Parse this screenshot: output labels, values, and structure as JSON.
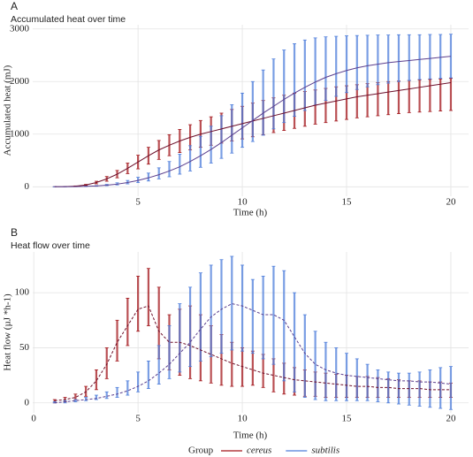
{
  "chart_data": [
    {
      "type": "line",
      "panel": "A",
      "title": "Accumulated heat over time",
      "x_label": "Time (h)",
      "y_label": "Accumulated heat (mJ)",
      "line_style": "solid",
      "grid": true,
      "x": [
        1,
        1.5,
        2,
        2.5,
        3,
        3.5,
        4,
        4.5,
        5,
        5.5,
        6,
        6.5,
        7,
        7.5,
        8,
        8.5,
        9,
        9.5,
        10,
        10.5,
        11,
        11.5,
        12,
        12.5,
        13,
        13.5,
        14,
        14.5,
        15,
        15.5,
        16,
        16.5,
        17,
        17.5,
        18,
        18.5,
        19,
        19.5,
        20
      ],
      "xlim": [
        -0.05,
        20.85
      ],
      "xticks": [
        5,
        10,
        15,
        20
      ],
      "ylim": [
        -180,
        3080
      ],
      "yticks": [
        0,
        1000,
        2000,
        3000
      ],
      "series": [
        {
          "name": "cereus",
          "color": "#a3161b",
          "line_color": "#6d0f2a",
          "values": [
            0,
            3,
            12,
            35,
            80,
            150,
            240,
            350,
            470,
            590,
            700,
            790,
            870,
            940,
            1000,
            1050,
            1100,
            1150,
            1200,
            1250,
            1300,
            1350,
            1400,
            1450,
            1500,
            1550,
            1590,
            1630,
            1670,
            1710,
            1740,
            1770,
            1800,
            1830,
            1860,
            1890,
            1920,
            1950,
            1980
          ],
          "lower": [
            0,
            2,
            8,
            25,
            55,
            105,
            170,
            250,
            340,
            430,
            520,
            590,
            650,
            700,
            750,
            790,
            830,
            870,
            910,
            950,
            990,
            1030,
            1070,
            1110,
            1150,
            1190,
            1220,
            1250,
            1280,
            1310,
            1330,
            1350,
            1370,
            1390,
            1410,
            1420,
            1430,
            1440,
            1450
          ],
          "upper": [
            0,
            4,
            16,
            45,
            105,
            195,
            310,
            450,
            600,
            750,
            880,
            990,
            1090,
            1180,
            1260,
            1330,
            1400,
            1470,
            1530,
            1590,
            1640,
            1690,
            1740,
            1780,
            1810,
            1840,
            1870,
            1900,
            1920,
            1940,
            1960,
            1980,
            2000,
            2010,
            2020,
            2030,
            2040,
            2050,
            2060
          ]
        },
        {
          "name": "subtilis",
          "color": "#4d7ddb",
          "line_color": "#5b3f8e",
          "values": [
            0,
            1,
            3,
            8,
            15,
            30,
            50,
            80,
            120,
            170,
            230,
            300,
            380,
            480,
            590,
            710,
            840,
            980,
            1120,
            1260,
            1400,
            1530,
            1660,
            1780,
            1890,
            1990,
            2080,
            2150,
            2210,
            2260,
            2300,
            2330,
            2360,
            2380,
            2400,
            2420,
            2440,
            2460,
            2480
          ],
          "lower": [
            0,
            0,
            2,
            5,
            10,
            20,
            35,
            55,
            80,
            110,
            150,
            190,
            240,
            300,
            370,
            450,
            540,
            640,
            750,
            860,
            980,
            1100,
            1220,
            1340,
            1450,
            1550,
            1640,
            1720,
            1790,
            1850,
            1900,
            1940,
            1970,
            2000,
            2020,
            2040,
            2050,
            2060,
            2070
          ],
          "upper": [
            0,
            2,
            5,
            12,
            22,
            45,
            75,
            120,
            180,
            260,
            360,
            480,
            620,
            780,
            960,
            1150,
            1350,
            1560,
            1780,
            2000,
            2220,
            2430,
            2600,
            2720,
            2790,
            2830,
            2850,
            2860,
            2870,
            2875,
            2880,
            2885,
            2885,
            2890,
            2890,
            2890,
            2895,
            2895,
            2900
          ]
        }
      ]
    },
    {
      "type": "line",
      "panel": "B",
      "title": "Heat flow over time",
      "x_label": "Time (h)",
      "y_label": "Heat flow (µJ *h-1)",
      "line_style": "dashed",
      "grid": true,
      "legend_title": "Group",
      "legend_position": "bottom",
      "x": [
        1,
        1.5,
        2,
        2.5,
        3,
        3.5,
        4,
        4.5,
        5,
        5.5,
        6,
        6.5,
        7,
        7.5,
        8,
        8.5,
        9,
        9.5,
        10,
        10.5,
        11,
        11.5,
        12,
        12.5,
        13,
        13.5,
        14,
        14.5,
        15,
        15.5,
        16,
        16.5,
        17,
        17.5,
        18,
        18.5,
        19,
        19.5,
        20
      ],
      "xlim": [
        -0.05,
        20.85
      ],
      "xticks": [
        0,
        5,
        10,
        15,
        20
      ],
      "ylim": [
        -9,
        137
      ],
      "yticks": [
        0,
        50,
        100
      ],
      "series": [
        {
          "name": "cereus",
          "color": "#a3161b",
          "line_color": "#6d0f2a",
          "values": [
            2,
            3,
            5,
            10,
            20,
            35,
            55,
            70,
            85,
            88,
            65,
            55,
            55,
            52,
            48,
            44,
            40,
            36,
            33,
            30,
            27,
            25,
            23,
            21,
            20,
            19,
            18,
            17,
            16,
            15,
            15,
            14,
            14,
            13,
            13,
            13,
            12,
            12,
            12
          ],
          "lower": [
            0,
            1,
            3,
            6,
            12,
            22,
            38,
            52,
            65,
            70,
            40,
            30,
            25,
            22,
            20,
            18,
            16,
            15,
            15,
            16,
            14,
            10,
            8,
            7,
            6,
            6,
            5,
            5,
            5,
            5,
            5,
            5,
            5,
            5,
            5,
            5,
            5,
            5,
            5
          ],
          "upper": [
            3,
            5,
            8,
            15,
            30,
            50,
            75,
            95,
            115,
            122,
            105,
            80,
            85,
            88,
            80,
            70,
            62,
            55,
            50,
            47,
            44,
            40,
            36,
            32,
            30,
            28,
            27,
            26,
            25,
            24,
            24,
            23,
            22,
            21,
            20,
            20,
            19,
            19,
            18
          ]
        },
        {
          "name": "subtilis",
          "color": "#4d7ddb",
          "line_color": "#5b3f8e",
          "values": [
            0,
            1,
            2,
            3,
            4,
            6,
            8,
            11,
            15,
            20,
            27,
            35,
            45,
            55,
            67,
            78,
            85,
            90,
            88,
            84,
            80,
            80,
            75,
            60,
            45,
            35,
            30,
            27,
            25,
            24,
            23,
            22,
            21,
            20,
            20,
            19,
            19,
            18,
            17
          ],
          "lower": [
            0,
            0,
            1,
            2,
            3,
            4,
            5,
            7,
            10,
            13,
            17,
            22,
            28,
            33,
            38,
            42,
            45,
            48,
            47,
            45,
            40,
            35,
            20,
            10,
            5,
            3,
            2,
            2,
            2,
            2,
            2,
            1,
            0,
            -1,
            -2,
            -3,
            -4,
            -5,
            -6
          ],
          "upper": [
            1,
            2,
            3,
            5,
            7,
            10,
            14,
            20,
            28,
            38,
            52,
            70,
            90,
            105,
            118,
            125,
            130,
            133,
            125,
            112,
            115,
            124,
            120,
            100,
            80,
            65,
            55,
            50,
            45,
            40,
            35,
            30,
            28,
            27,
            27,
            28,
            30,
            32,
            33
          ]
        }
      ]
    }
  ]
}
